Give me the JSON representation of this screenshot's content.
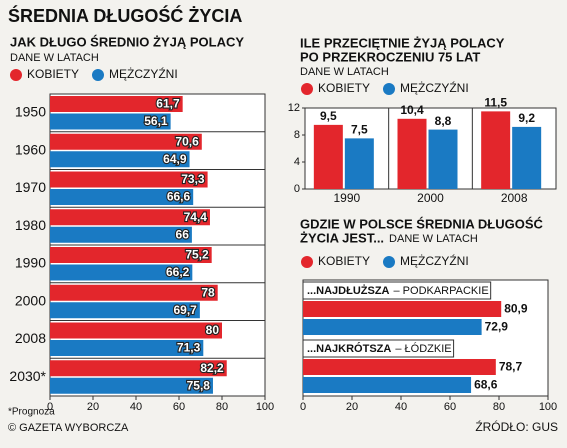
{
  "title": "ŚREDNIA DŁUGOŚĆ ŻYCIA",
  "chart_data": [
    {
      "type": "hbar",
      "title": "JAK DŁUGO ŚREDNIO ŻYJĄ POLACY",
      "subtitle": "DANE W LATACH",
      "footnote": "*Prognoza",
      "categories": [
        "1950",
        "1960",
        "1970",
        "1980",
        "1990",
        "2000",
        "2008",
        "2030*"
      ],
      "series": [
        {
          "name": "KOBIETY",
          "color": "#e3262c",
          "values": [
            61.7,
            70.6,
            73.3,
            74.4,
            75.2,
            78,
            80,
            82.2
          ],
          "value_labels": [
            "61,7",
            "70,6",
            "73,3",
            "74,4",
            "75,2",
            "78",
            "80",
            "82,2"
          ]
        },
        {
          "name": "MĘŻCZYŹNI",
          "color": "#1a7ac3",
          "values": [
            56.1,
            64.9,
            66.6,
            66,
            66.2,
            69.7,
            71.3,
            75.8
          ],
          "value_labels": [
            "56,1",
            "64,9",
            "66,6",
            "66",
            "66,2",
            "69,7",
            "71,3",
            "75,8"
          ]
        }
      ],
      "xlim": [
        0,
        100
      ],
      "xticks": [
        0,
        20,
        40,
        60,
        80,
        100
      ]
    },
    {
      "type": "bar",
      "title_lines": [
        "ILE PRZECIĘTNIE ŻYJĄ POLACY",
        "PO PRZEKROCZENIU 75 LAT"
      ],
      "subtitle": "DANE W LATACH",
      "categories": [
        "1990",
        "2000",
        "2008"
      ],
      "series": [
        {
          "name": "KOBIETY",
          "color": "#e3262c",
          "values": [
            9.5,
            10.4,
            11.5
          ],
          "value_labels": [
            "9,5",
            "10,4",
            "11,5"
          ]
        },
        {
          "name": "MĘŻCZYŹNI",
          "color": "#1a7ac3",
          "values": [
            7.5,
            8.8,
            9.2
          ],
          "value_labels": [
            "7,5",
            "8,8",
            "9,2"
          ]
        }
      ],
      "ylim": [
        0,
        12
      ],
      "yticks": [
        0,
        4,
        8,
        12
      ]
    },
    {
      "type": "hbar-groups",
      "title_lines": [
        "GDZIE W POLSCE ŚREDNIA DŁUGOŚĆ",
        "ŻYCIA JEST..."
      ],
      "subtitle": "DANE W LATACH",
      "category_prefixes": [
        "...NAJDŁUŻSZA",
        "...NAJKRÓTSZA"
      ],
      "categories": [
        "– PODKARPACKIE",
        "– ŁÓDZKIE"
      ],
      "series": [
        {
          "name": "KOBIETY",
          "color": "#e3262c",
          "values": [
            80.9,
            78.7
          ],
          "value_labels": [
            "80,9",
            "78,7"
          ]
        },
        {
          "name": "MĘŻCZYŹNI",
          "color": "#1a7ac3",
          "values": [
            72.9,
            68.6
          ],
          "value_labels": [
            "72,9",
            "68,6"
          ]
        }
      ],
      "xlim": [
        0,
        100
      ],
      "xticks": [
        0,
        20,
        40,
        60,
        80,
        100
      ]
    }
  ],
  "footer": {
    "credit": "© GAZETA WYBORCZA",
    "source": "ŹRÓDŁO: GUS"
  }
}
